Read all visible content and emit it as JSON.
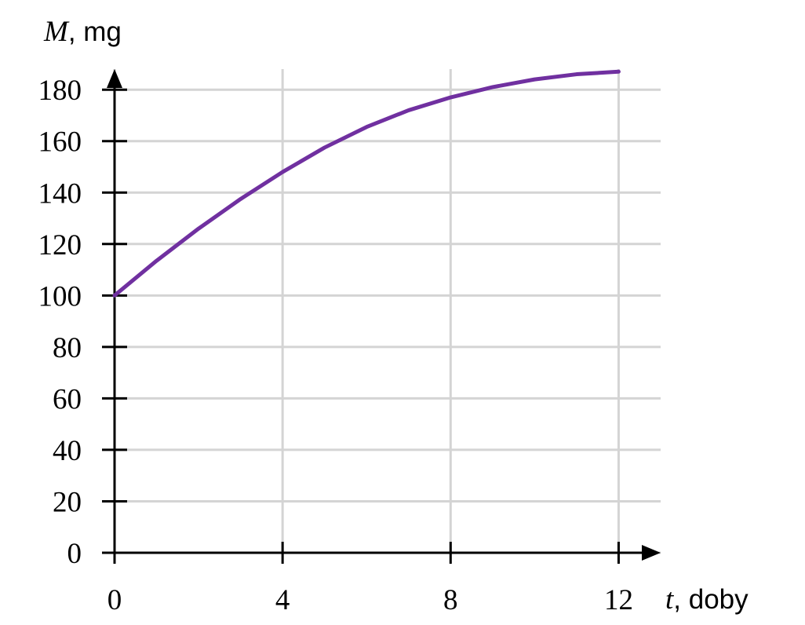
{
  "chart_data": {
    "type": "line",
    "x_label": {
      "symbol": "t",
      "unit": ", doby"
    },
    "y_label": {
      "symbol": "M",
      "unit": ", mg"
    },
    "x": [
      0,
      1,
      2,
      3,
      4,
      5,
      6,
      7,
      8,
      9,
      10,
      11,
      12
    ],
    "series": [
      {
        "color": "#7030a0",
        "values": [
          100,
          113.5,
          126,
          137.5,
          148,
          157.5,
          165.5,
          172,
          177,
          181,
          184,
          186,
          187
        ]
      }
    ],
    "xlim": [
      0,
      13
    ],
    "ylim": [
      0,
      188
    ],
    "xticks": [
      0,
      4,
      8,
      12
    ],
    "yticks": [
      0,
      20,
      40,
      60,
      80,
      100,
      120,
      140,
      160,
      180
    ],
    "grid": true
  }
}
